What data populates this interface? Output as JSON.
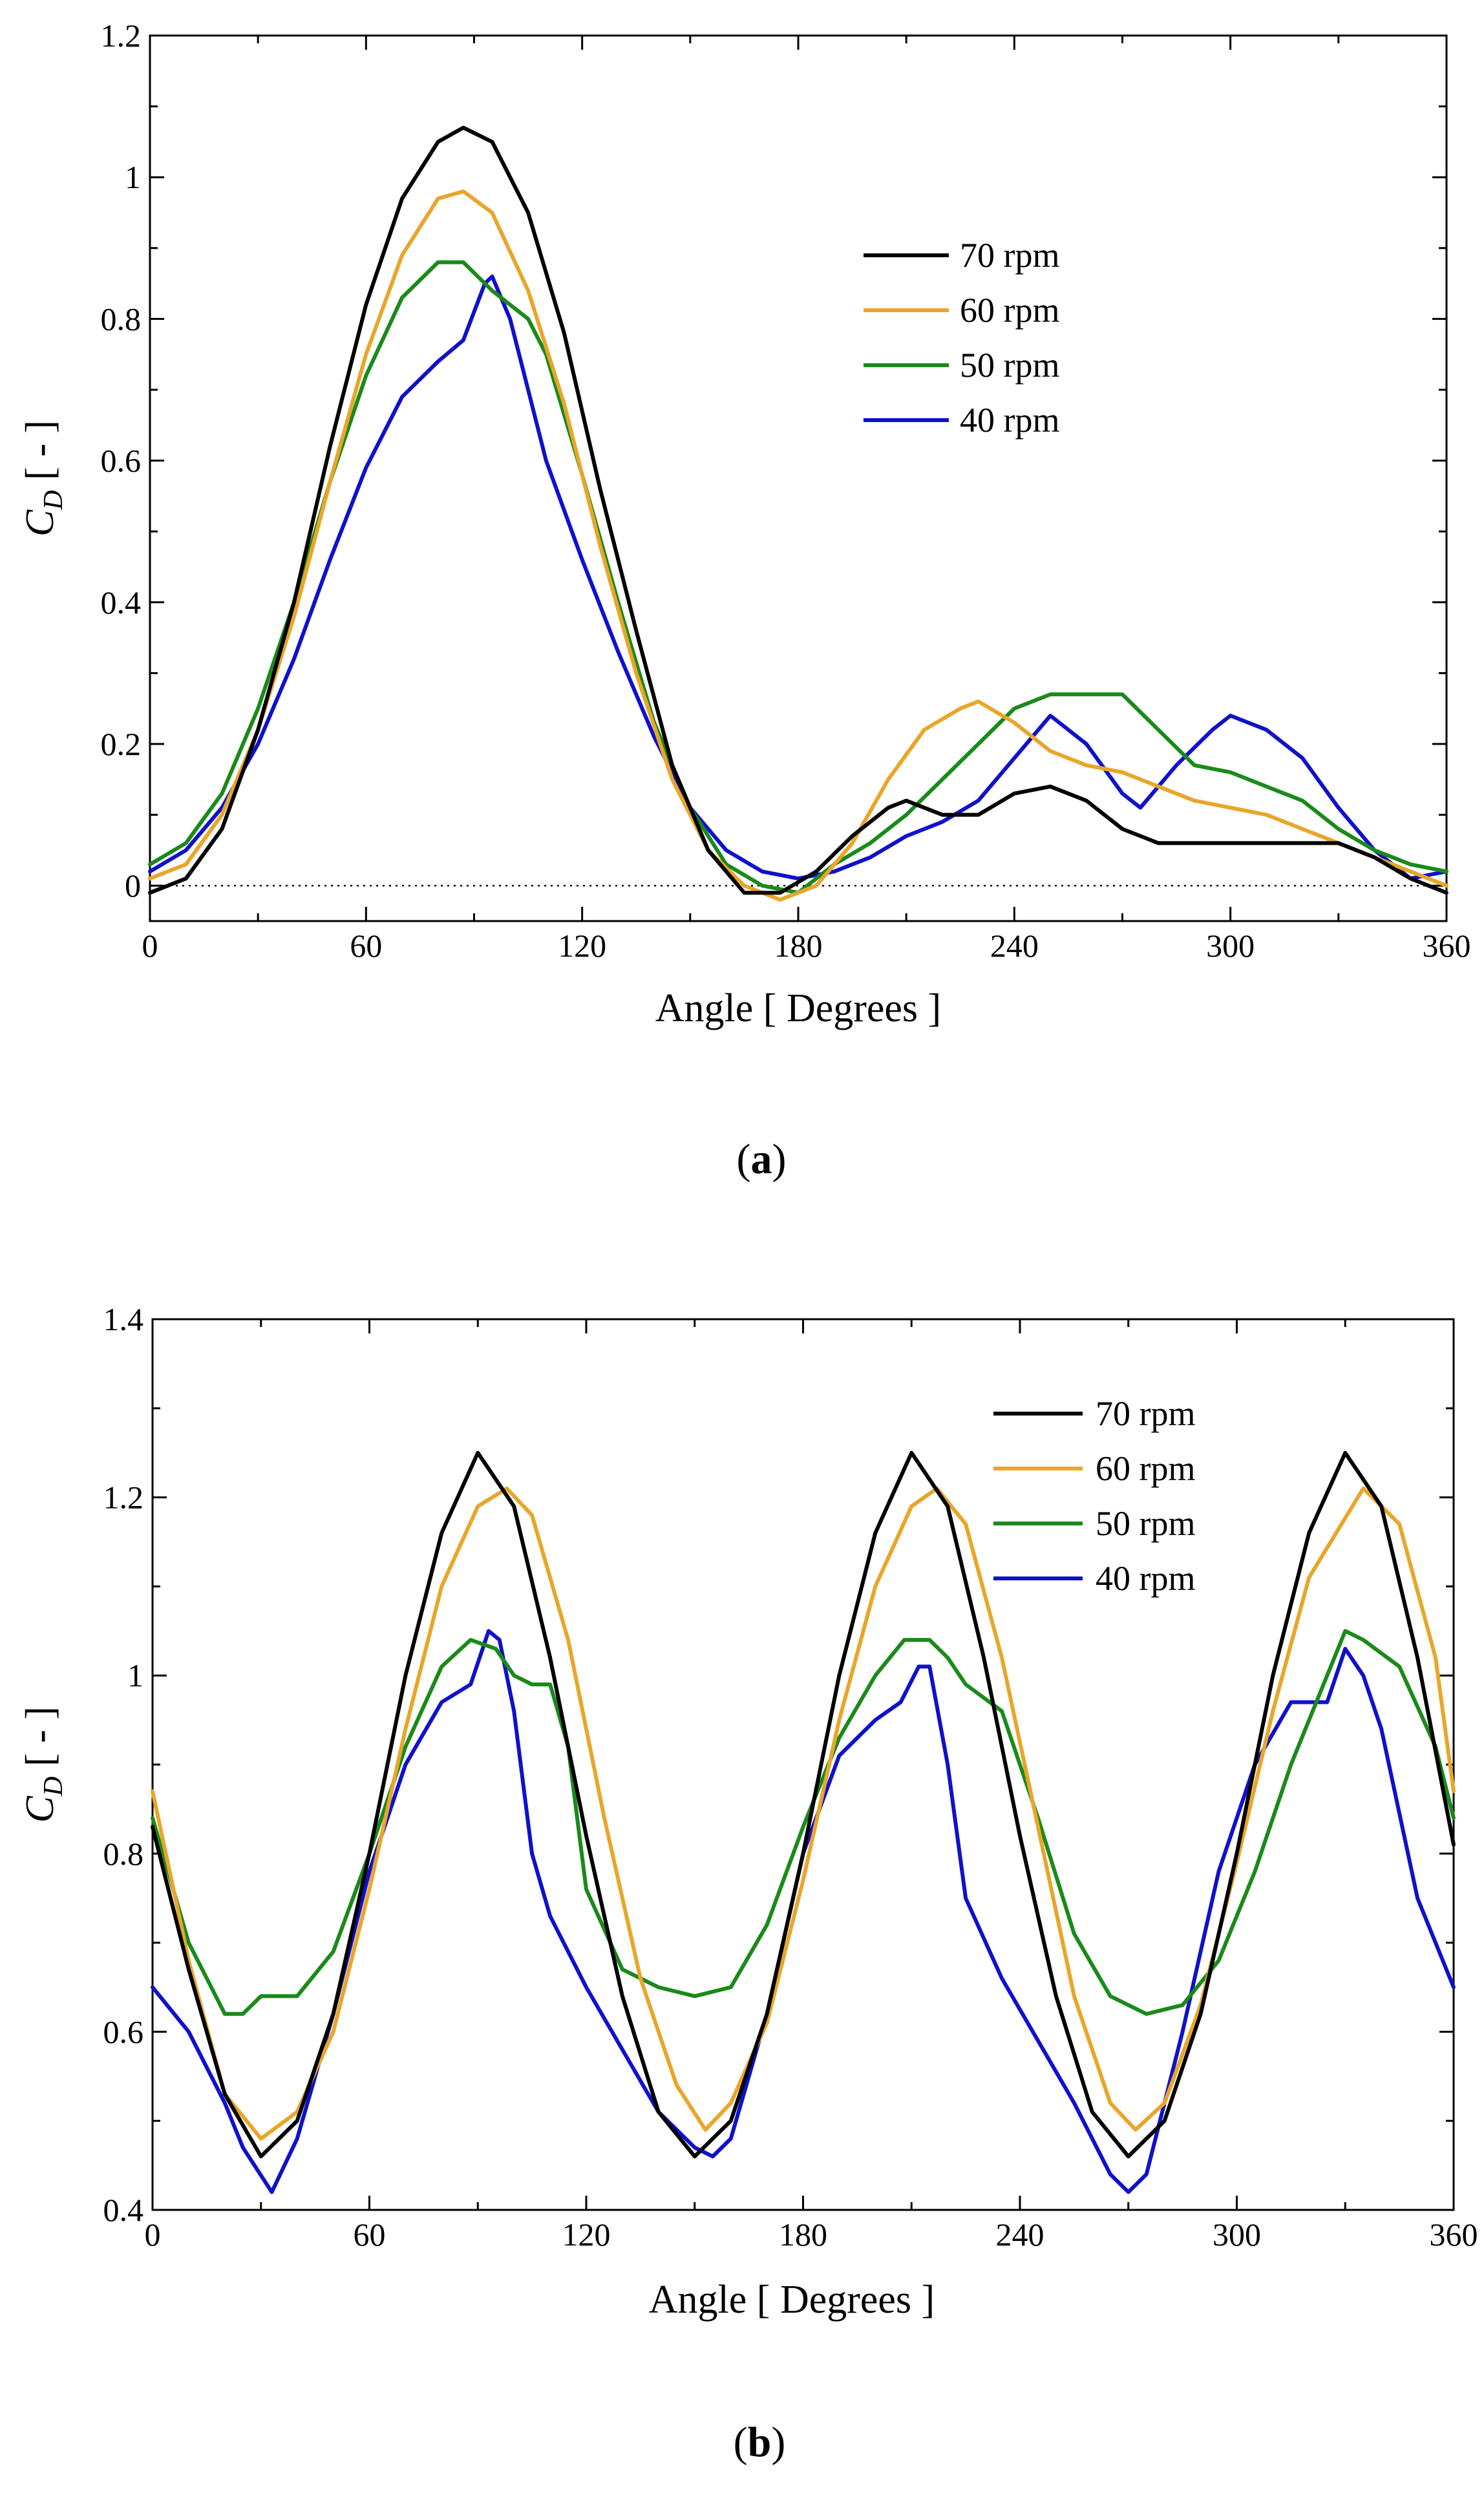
{
  "colors": {
    "70": "#000000",
    "60": "#e8a62a",
    "50": "#1a8a1a",
    "40": "#1010cc"
  },
  "chart_data": [
    {
      "id": "a",
      "type": "line",
      "caption": "a",
      "xlabel": "Angle [ Degrees ]",
      "ylabel_main": "C",
      "ylabel_sub": "D",
      "ylabel_unit": " [ - ]",
      "xlim": [
        0,
        360
      ],
      "ylim": [
        -0.05,
        1.2
      ],
      "xticks": [
        0,
        60,
        120,
        180,
        240,
        300,
        360
      ],
      "yticks": [
        0,
        0.2,
        0.4,
        0.6,
        0.8,
        1,
        1.2
      ],
      "ytick_labels": [
        "0",
        "0.2",
        "0.4",
        "0.6",
        "0.8",
        "1",
        "1.2"
      ],
      "zero_line": true,
      "series": [
        {
          "name": "70 rpm",
          "color_key": "70",
          "x": [
            0,
            10,
            20,
            30,
            40,
            50,
            60,
            70,
            80,
            87,
            95,
            105,
            115,
            125,
            135,
            145,
            155,
            165,
            175,
            185,
            195,
            205,
            210,
            220,
            230,
            240,
            250,
            260,
            270,
            280,
            290,
            300,
            310,
            320,
            330,
            340,
            350,
            360
          ],
          "y": [
            -0.01,
            0.01,
            0.08,
            0.22,
            0.4,
            0.62,
            0.82,
            0.97,
            1.05,
            1.07,
            1.05,
            0.95,
            0.78,
            0.56,
            0.36,
            0.17,
            0.05,
            -0.01,
            -0.01,
            0.02,
            0.07,
            0.11,
            0.12,
            0.1,
            0.1,
            0.13,
            0.14,
            0.12,
            0.08,
            0.06,
            0.06,
            0.06,
            0.06,
            0.06,
            0.06,
            0.04,
            0.01,
            -0.01
          ]
        },
        {
          "name": "60 rpm",
          "color_key": "60",
          "x": [
            0,
            10,
            20,
            30,
            40,
            50,
            60,
            70,
            80,
            87,
            95,
            105,
            115,
            125,
            135,
            145,
            155,
            165,
            175,
            185,
            195,
            205,
            215,
            225,
            230,
            240,
            250,
            260,
            270,
            280,
            290,
            300,
            310,
            320,
            330,
            340,
            350,
            360
          ],
          "y": [
            0.01,
            0.03,
            0.1,
            0.22,
            0.38,
            0.57,
            0.75,
            0.89,
            0.97,
            0.98,
            0.95,
            0.84,
            0.68,
            0.48,
            0.3,
            0.15,
            0.05,
            0.0,
            -0.02,
            0.0,
            0.06,
            0.15,
            0.22,
            0.25,
            0.26,
            0.23,
            0.19,
            0.17,
            0.16,
            0.14,
            0.12,
            0.11,
            0.1,
            0.08,
            0.06,
            0.04,
            0.02,
            0.0
          ]
        },
        {
          "name": "50 rpm",
          "color_key": "50",
          "x": [
            0,
            10,
            20,
            30,
            40,
            50,
            60,
            70,
            80,
            87,
            95,
            100,
            105,
            110,
            120,
            130,
            140,
            150,
            160,
            170,
            180,
            190,
            200,
            210,
            220,
            230,
            240,
            250,
            260,
            270,
            280,
            290,
            300,
            310,
            320,
            330,
            340,
            350,
            360
          ],
          "y": [
            0.03,
            0.06,
            0.13,
            0.25,
            0.4,
            0.57,
            0.72,
            0.83,
            0.88,
            0.88,
            0.84,
            0.82,
            0.8,
            0.75,
            0.58,
            0.4,
            0.23,
            0.11,
            0.03,
            0.0,
            -0.01,
            0.03,
            0.06,
            0.1,
            0.15,
            0.2,
            0.25,
            0.27,
            0.27,
            0.27,
            0.22,
            0.17,
            0.16,
            0.14,
            0.12,
            0.08,
            0.05,
            0.03,
            0.02
          ]
        },
        {
          "name": "40 rpm",
          "color_key": "40",
          "x": [
            0,
            10,
            20,
            30,
            40,
            50,
            60,
            70,
            80,
            87,
            93,
            95,
            100,
            105,
            110,
            120,
            130,
            140,
            150,
            160,
            170,
            180,
            190,
            200,
            210,
            220,
            230,
            240,
            250,
            260,
            270,
            275,
            285,
            295,
            300,
            310,
            320,
            330,
            340,
            350,
            360
          ],
          "y": [
            0.02,
            0.05,
            0.11,
            0.2,
            0.32,
            0.46,
            0.59,
            0.69,
            0.74,
            0.77,
            0.85,
            0.86,
            0.8,
            0.7,
            0.6,
            0.46,
            0.33,
            0.21,
            0.11,
            0.05,
            0.02,
            0.01,
            0.02,
            0.04,
            0.07,
            0.09,
            0.12,
            0.18,
            0.24,
            0.2,
            0.13,
            0.11,
            0.17,
            0.22,
            0.24,
            0.22,
            0.18,
            0.11,
            0.05,
            0.01,
            0.02
          ]
        }
      ],
      "legend": [
        "70 rpm",
        "60 rpm",
        "50 rpm",
        "40 rpm"
      ],
      "legend_position": "upper-right"
    },
    {
      "id": "b",
      "type": "line",
      "caption": "b",
      "xlabel": "Angle [ Degrees ]",
      "ylabel_main": "C",
      "ylabel_sub": "D",
      "ylabel_unit": " [ - ]",
      "xlim": [
        0,
        360
      ],
      "ylim": [
        0.4,
        1.4
      ],
      "xticks": [
        0,
        60,
        120,
        180,
        240,
        300,
        360
      ],
      "yticks": [
        0.4,
        0.6,
        0.8,
        1,
        1.2,
        1.4
      ],
      "ytick_labels": [
        "0.4",
        "0.6",
        "0.8",
        "1",
        "1.2",
        "1.4"
      ],
      "zero_line": false,
      "series": [
        {
          "name": "70 rpm",
          "color_key": "70",
          "x": [
            0,
            10,
            20,
            30,
            40,
            50,
            60,
            70,
            80,
            90,
            100,
            110,
            120,
            130,
            140,
            150,
            160,
            170,
            180,
            190,
            200,
            210,
            220,
            230,
            240,
            250,
            260,
            270,
            280,
            290,
            300,
            310,
            320,
            330,
            340,
            350,
            360
          ],
          "y": [
            0.83,
            0.67,
            0.53,
            0.46,
            0.5,
            0.62,
            0.8,
            1.0,
            1.16,
            1.25,
            1.19,
            1.02,
            0.82,
            0.64,
            0.51,
            0.46,
            0.5,
            0.62,
            0.8,
            1.0,
            1.16,
            1.25,
            1.19,
            1.02,
            0.82,
            0.64,
            0.51,
            0.46,
            0.5,
            0.62,
            0.8,
            1.0,
            1.16,
            1.25,
            1.19,
            1.02,
            0.81
          ]
        },
        {
          "name": "60 rpm",
          "color_key": "60",
          "x": [
            0,
            10,
            20,
            30,
            40,
            50,
            60,
            70,
            80,
            90,
            98,
            105,
            115,
            125,
            135,
            145,
            153,
            160,
            170,
            180,
            190,
            200,
            210,
            217,
            225,
            235,
            245,
            255,
            265,
            272,
            280,
            290,
            300,
            310,
            320,
            335,
            345,
            355,
            360
          ],
          "y": [
            0.87,
            0.68,
            0.53,
            0.48,
            0.51,
            0.6,
            0.76,
            0.94,
            1.1,
            1.19,
            1.21,
            1.18,
            1.04,
            0.84,
            0.66,
            0.54,
            0.49,
            0.52,
            0.61,
            0.77,
            0.95,
            1.1,
            1.19,
            1.21,
            1.17,
            1.02,
            0.83,
            0.64,
            0.52,
            0.49,
            0.52,
            0.63,
            0.79,
            0.96,
            1.11,
            1.21,
            1.17,
            1.02,
            0.87
          ]
        },
        {
          "name": "50 rpm",
          "color_key": "50",
          "x": [
            0,
            10,
            20,
            25,
            30,
            40,
            50,
            60,
            70,
            80,
            88,
            95,
            100,
            105,
            110,
            115,
            120,
            130,
            140,
            150,
            160,
            170,
            180,
            190,
            200,
            208,
            215,
            220,
            225,
            235,
            245,
            255,
            265,
            275,
            285,
            295,
            305,
            315,
            325,
            330,
            335,
            345,
            355,
            360
          ],
          "y": [
            0.84,
            0.7,
            0.62,
            0.62,
            0.64,
            0.64,
            0.69,
            0.8,
            0.92,
            1.01,
            1.04,
            1.03,
            1.0,
            0.99,
            0.99,
            0.92,
            0.76,
            0.67,
            0.65,
            0.64,
            0.65,
            0.72,
            0.83,
            0.93,
            1.0,
            1.04,
            1.04,
            1.02,
            0.99,
            0.96,
            0.84,
            0.71,
            0.64,
            0.62,
            0.63,
            0.68,
            0.78,
            0.9,
            1.0,
            1.05,
            1.04,
            1.01,
            0.92,
            0.84
          ]
        },
        {
          "name": "40 rpm",
          "color_key": "40",
          "x": [
            0,
            10,
            20,
            25,
            33,
            40,
            50,
            60,
            70,
            80,
            88,
            93,
            96,
            100,
            105,
            110,
            120,
            130,
            140,
            150,
            155,
            160,
            170,
            180,
            190,
            200,
            207,
            212,
            215,
            220,
            225,
            235,
            245,
            255,
            265,
            270,
            275,
            285,
            295,
            305,
            315,
            325,
            330,
            335,
            340,
            350,
            360
          ],
          "y": [
            0.65,
            0.6,
            0.52,
            0.47,
            0.42,
            0.48,
            0.62,
            0.78,
            0.9,
            0.97,
            0.99,
            1.05,
            1.04,
            0.96,
            0.8,
            0.73,
            0.65,
            0.58,
            0.51,
            0.47,
            0.46,
            0.48,
            0.62,
            0.8,
            0.91,
            0.95,
            0.97,
            1.01,
            1.01,
            0.9,
            0.75,
            0.66,
            0.59,
            0.52,
            0.44,
            0.42,
            0.44,
            0.6,
            0.78,
            0.9,
            0.97,
            0.97,
            1.03,
            1.0,
            0.94,
            0.75,
            0.65
          ]
        }
      ],
      "legend": [
        "70 rpm",
        "60 rpm",
        "50 rpm",
        "40 rpm"
      ],
      "legend_position": "upper-right"
    }
  ]
}
